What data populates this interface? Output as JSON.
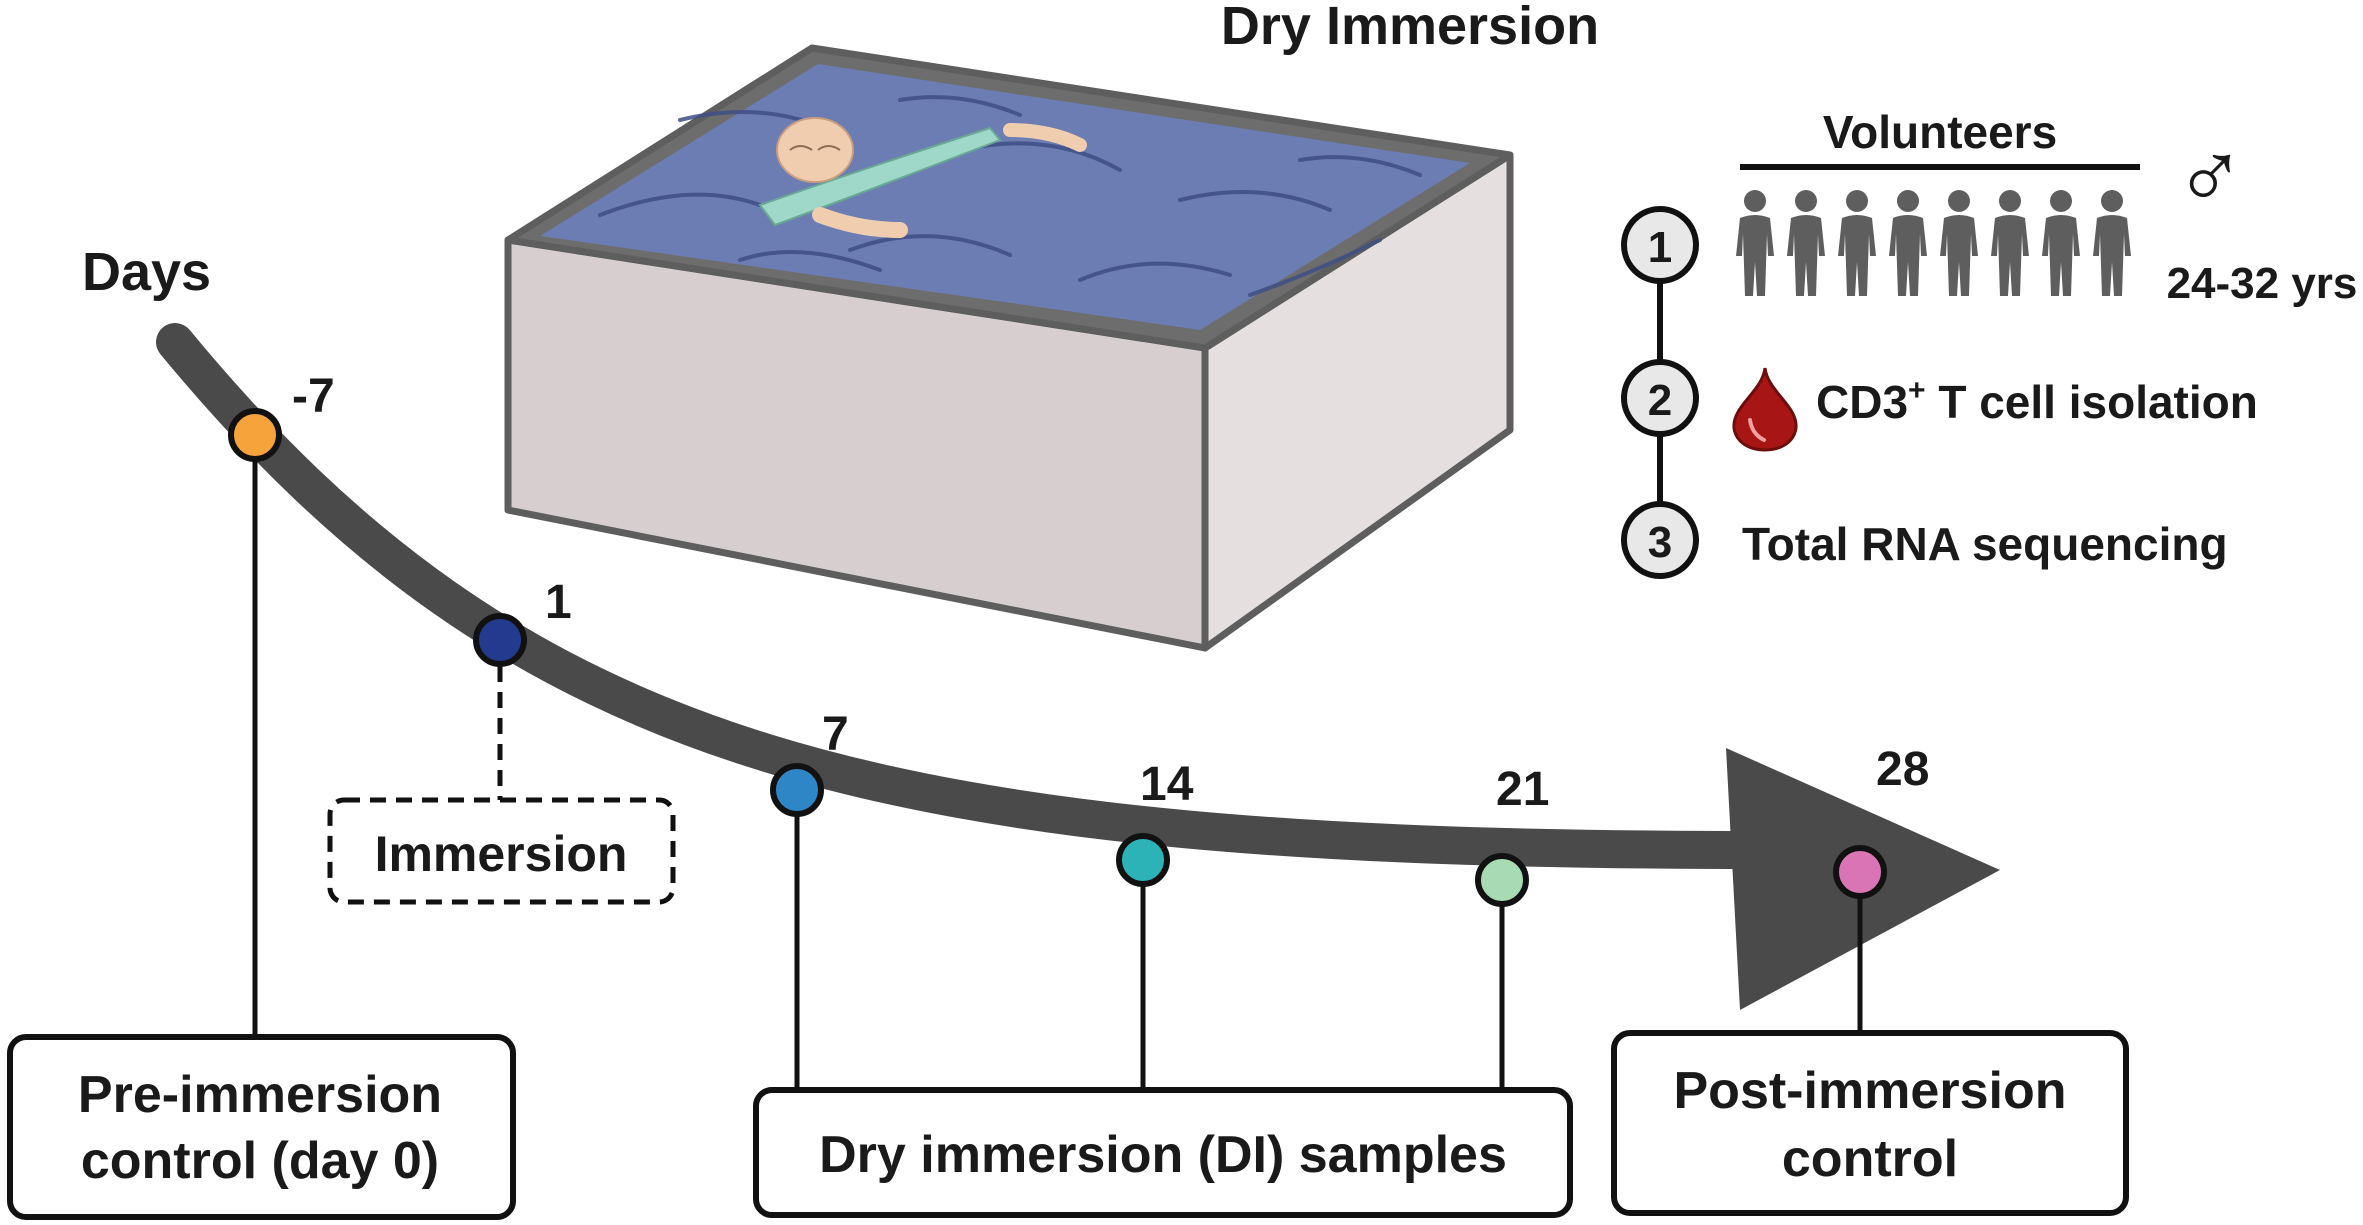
{
  "title": "Dry Immersion",
  "days_label": "Days",
  "timepoints": [
    {
      "day": "-7",
      "color": "#f5a33a"
    },
    {
      "day": "1",
      "color": "#243a8e"
    },
    {
      "day": "7",
      "color": "#2f86c6"
    },
    {
      "day": "14",
      "color": "#2bb3b8"
    },
    {
      "day": "21",
      "color": "#a8dbb4"
    },
    {
      "day": "28",
      "color": "#d975b5"
    }
  ],
  "immersion_label": "Immersion",
  "boxes": {
    "pre_line1": "Pre-immersion",
    "pre_line2": "control (day 0)",
    "di": "Dry immersion (DI) samples",
    "post_line1": "Post-immersion",
    "post_line2": "control"
  },
  "volunteers": {
    "heading": "Volunteers",
    "count": 8,
    "sex_symbol": "♂",
    "age": "24-32 yrs"
  },
  "steps": [
    {
      "num": "1"
    },
    {
      "num": "2",
      "text": "CD3",
      "sup": "+",
      "text2": " T cell isolation",
      "icon": "blood-drop-icon"
    },
    {
      "num": "3",
      "text": "Total RNA sequencing"
    }
  ],
  "colors": {
    "arrow": "#4a4a4a",
    "tub_water": "#6b7db3",
    "tub_side": "#d7cfcf",
    "tub_rim": "#6d6d6d",
    "blood": "#a81515"
  }
}
